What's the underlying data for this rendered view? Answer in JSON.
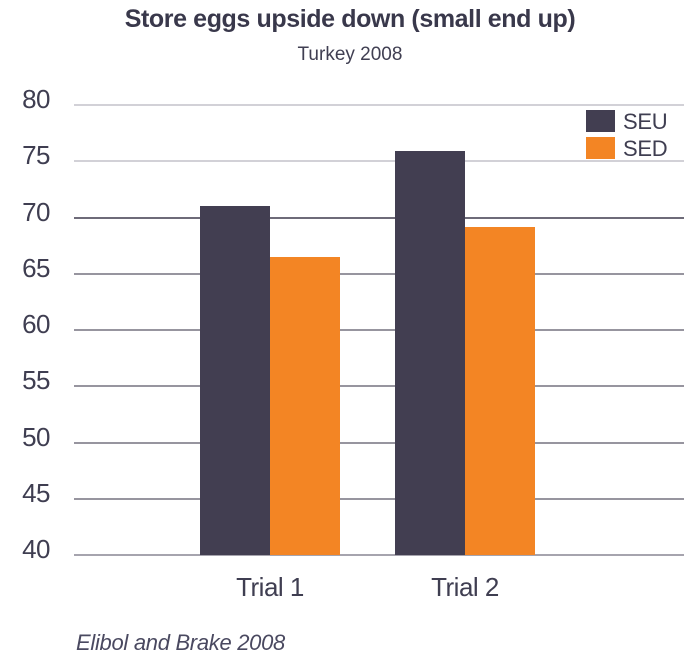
{
  "chart_data": {
    "type": "bar",
    "title": "Store eggs upside down (small end up)",
    "subtitle": "Turkey 2008",
    "caption": "Elibol and Brake 2008",
    "categories": [
      "Trial 1",
      "Trial 2"
    ],
    "series": [
      {
        "name": "SEU",
        "values": [
          71.0,
          75.9
        ],
        "color": "#423E51"
      },
      {
        "name": "SED",
        "values": [
          66.5,
          69.2
        ],
        "color": "#F38524"
      }
    ],
    "y_axis": {
      "min": 40,
      "max": 80,
      "step": 5,
      "tick_labels": [
        "40",
        "45",
        "50",
        "55",
        "60",
        "65",
        "70",
        "75",
        "80"
      ]
    },
    "grid": true,
    "legend_position": "top-right"
  },
  "colors": {
    "bar_seu": "#423E51",
    "bar_sed": "#F38524",
    "text": "#3f3e51",
    "title_text": "#39384b",
    "caption_text": "#4a4960",
    "gridline": "#97959F",
    "gridline_light": "#D2D1D7",
    "gridline_dark": "#6E6B79",
    "axis_line": "#A6A4AE",
    "background": "#FFFFFF"
  }
}
